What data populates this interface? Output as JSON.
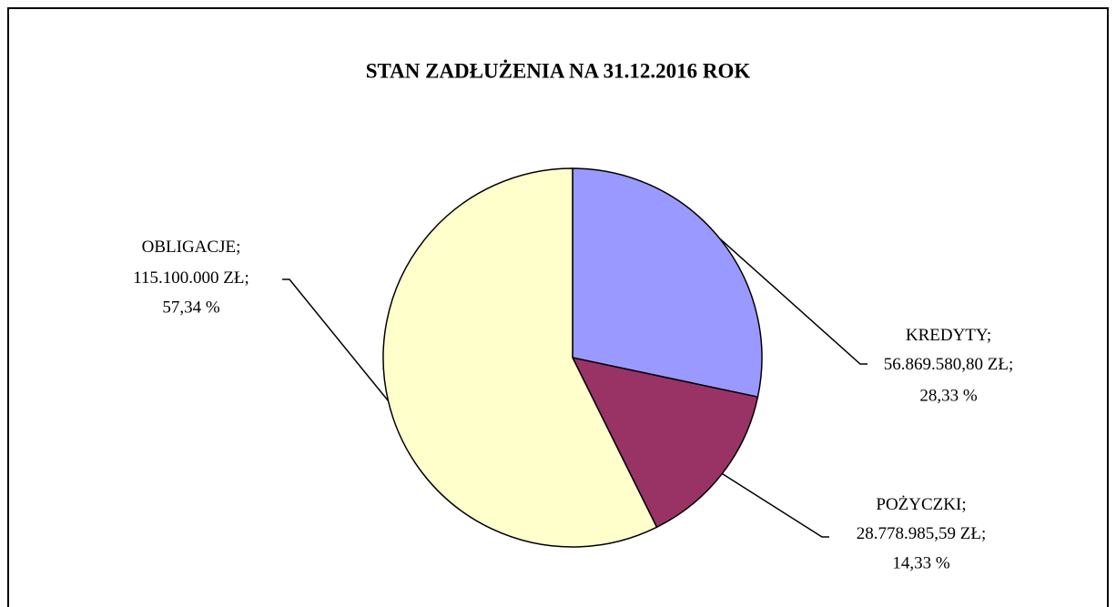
{
  "chart_data": {
    "type": "pie",
    "title": "STAN ZADŁUŻENIA NA 31.12.2016 ROK",
    "categories": [
      "KREDYTY",
      "POŻYCZKI",
      "OBLIGACJE"
    ],
    "values": [
      56869580.8,
      28778985.59,
      115100000
    ],
    "value_labels": [
      "56.869.580,80 ZŁ",
      "28.778.985,59 ZŁ",
      "115.100.000 ZŁ"
    ],
    "percentages": [
      28.33,
      14.33,
      57.34
    ],
    "percentage_labels": [
      "28,33 %",
      "14,33 %",
      "57,34 %"
    ],
    "separator": ";",
    "colors": [
      "#9999ff",
      "#993366",
      "#ffffcc"
    ]
  }
}
